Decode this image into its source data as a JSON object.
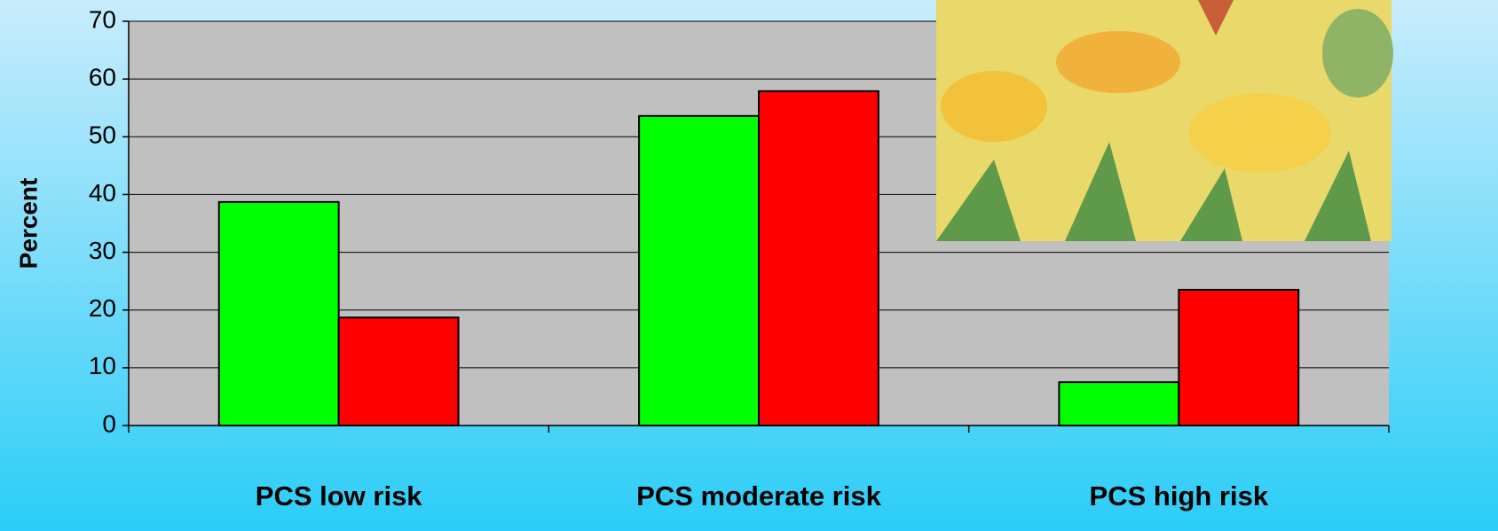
{
  "chart_data": {
    "type": "bar",
    "y_label": "Percent",
    "categories": [
      "PCS low risk",
      "PCS moderate risk",
      "PCS high risk"
    ],
    "series": [
      {
        "color": "#00ff00",
        "values": [
          38.7,
          53.6,
          7.5
        ]
      },
      {
        "color": "#ff0000",
        "values": [
          18.7,
          57.9,
          23.5
        ]
      }
    ],
    "ylim": [
      0,
      70
    ],
    "yticks": [
      0,
      10,
      20,
      30,
      40,
      50,
      60,
      70
    ],
    "grid": true
  }
}
